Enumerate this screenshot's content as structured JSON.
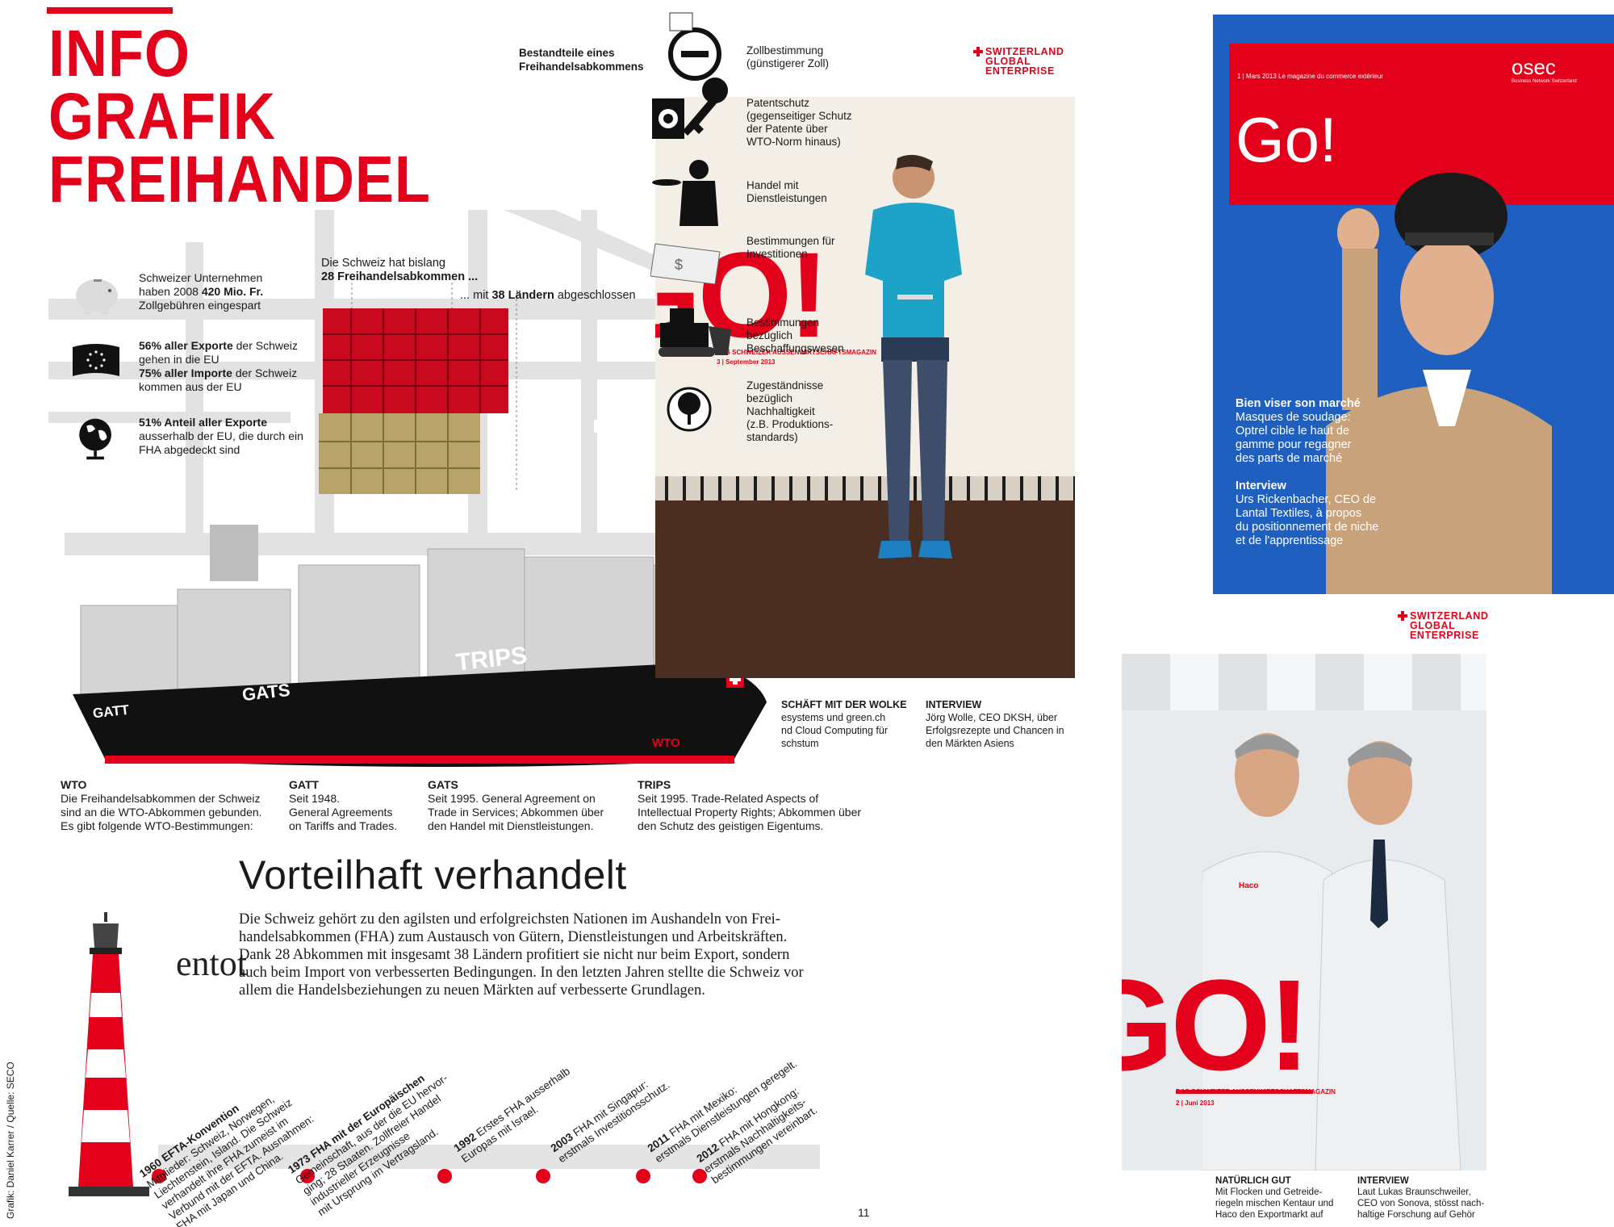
{
  "left_page": {
    "title_lines": [
      "INFO",
      "GRAFIK",
      "FREIHANDEL"
    ],
    "stats": [
      {
        "text": "Schweizer Unternehmen haben 2008 420 Mio. Fr. Zollgebühren eingespart",
        "icon": "piggy-bank-icon"
      },
      {
        "text": "56% aller Exporte der Schweiz gehen in die EU 75% aller Importe der Schweiz kommen aus der EU",
        "icon": "eu-flag-icon"
      },
      {
        "text": "51% Anteil aller Exporte ausserhalb der EU, die durch ein FHA abgedeckt sind",
        "icon": "globe-icon"
      }
    ],
    "stats_lines": [
      [
        "Schweizer Unternehmen",
        "haben 2008 ",
        "420 Mio. Fr.",
        "Zollgebühren eingespart"
      ],
      [
        "56% aller Exporte",
        " der Schweiz",
        "gehen in die EU",
        "75% aller Importe",
        " der Schweiz",
        "kommen aus der EU"
      ],
      [
        "51% Anteil aller Exporte",
        "ausserhalb der EU, die durch ein",
        "FHA abgedeckt sind"
      ]
    ],
    "fha_count_label_1": "Die Schweiz hat bislang",
    "fha_count_label_2": "28 Freihandelsabkommen ...",
    "countries_label_a": "... mit ",
    "countries_label_b": "38 Ländern",
    "countries_label_c": " abgeschlossen",
    "ship_labels": [
      "GATT",
      "GATS",
      "TRIPS",
      "WTO"
    ],
    "captions": [
      {
        "head": "WTO",
        "lines": [
          "Die Freihandelsabkommen der Schweiz",
          "sind an die WTO-Abkommen gebunden.",
          "Es gibt folgende WTO-Bestimmungen:"
        ]
      },
      {
        "head": "GATT",
        "lines": [
          "Seit 1948.",
          "General Agreements",
          "on Tariffs and Trades."
        ]
      },
      {
        "head": "GATS",
        "lines": [
          "Seit 1995. General Agreement on",
          "Trade in Services; Abkommen über",
          "den Handel mit Dienstleistungen."
        ]
      },
      {
        "head": "TRIPS",
        "lines": [
          "Seit 1995. Trade-Related Aspects of",
          "Intellectual Property Rights; Abkommen über",
          "den Schutz des geistigen Eigentums."
        ]
      }
    ],
    "subhead": "Vorteilhaft verhandelt",
    "body_lines": [
      "Die Schweiz gehört zu den agilsten und erfolgreichsten Nationen im Aushandeln von Frei-",
      "handelsabkommen (FHA) zum Austausch von Gütern, Dienstleistungen und Arbeitskräften.",
      "Dank 28 Abkommen mit insgesamt 38 Ländern profitiert sie nicht nur beim Export, sondern",
      "auch beim Import von verbesserten Bedingungen. In den letzten Jahren stellte die Schweiz vor",
      "allem die Handelsbeziehungen zu neuen Märkten auf verbesserte Grundlagen."
    ],
    "overprint": "entot",
    "timeline": [
      {
        "year": "1960",
        "head": "EFTA-Konvention",
        "lines": [
          "Mitglieder: Schweiz, Norwegen,",
          "Liechtenstein, Island. Die Schweiz",
          "verhandelt ihre FHA zumeist im",
          "Verbund mit der EFTA. Ausnahmen:",
          "FHA mit Japan und China."
        ]
      },
      {
        "year": "1973",
        "head": "FHA mit der Europäischen",
        "head2": "Gemeinschaft",
        "lines": [
          "Gemeinschaft, aus der die EU hervor-",
          "ging; 28 Staaten. Zollfreier Handel",
          "industrieller Erzeugnisse",
          "mit Ursprung im Vertragsland."
        ]
      },
      {
        "year": "1992",
        "head": "",
        "lines": [
          "Erstes FHA ausserhalb",
          "Europas mit Israel."
        ]
      },
      {
        "year": "2003",
        "head": "",
        "lines": [
          "FHA mit Singapur:",
          "erstmals Investitionsschutz."
        ]
      },
      {
        "year": "2011",
        "head": "",
        "lines": [
          "FHA mit Mexiko:",
          "erstmals Dienstleistungen geregelt."
        ]
      },
      {
        "year": "2012",
        "head": "",
        "lines": [
          "FHA mit Hongkong:",
          "erstmals Nachhaltigkeits-",
          "bestimmungen vereinbart."
        ]
      }
    ],
    "credit": "Grafik: Daniel Karrer / Quelle: SECO",
    "page_number": "11"
  },
  "components": {
    "heading_1": "Bestandteile eines",
    "heading_2": "Freihandelsabkommens",
    "items": [
      {
        "lines": [
          "Zollbestimmung",
          "(günstigerer Zoll)"
        ],
        "icon": "minus-icon"
      },
      {
        "lines": [
          "Patentschutz",
          "(gegenseitiger Schutz",
          "der Patente über",
          "WTO-Norm hinaus)"
        ],
        "icon": "key-icon"
      },
      {
        "lines": [
          "Handel mit",
          "Dienstleistungen"
        ],
        "icon": "waiter-icon"
      },
      {
        "lines": [
          "Bestimmungen für",
          "Investitionen"
        ],
        "icon": "money-icon"
      },
      {
        "lines": [
          "Bestimmungen",
          "bezüglich",
          "Beschaffungswesen"
        ],
        "icon": "bulldozer-icon"
      },
      {
        "lines": [
          "Zugeständnisse",
          "bezüglich",
          "Nachhaltigkeit",
          "(z.B. Produktions-",
          "standards)"
        ],
        "icon": "tree-icon"
      }
    ]
  },
  "mag_center": {
    "sge_lines": [
      "SWITZERLAND",
      "GLOBAL",
      "ENTERPRISE"
    ],
    "logo": "GO!",
    "tagline": "DAS SCHWEIZER AUSSENWIRTSCHAFTSMAGAZIN",
    "issue": "3 | September 2013",
    "teaser_left_head": "SCHÄFT MIT DER WOLKE",
    "teaser_left_lines": [
      "esystems und green.ch",
      "nd Cloud Computing für",
      "schstum"
    ],
    "teaser_right_head": "INTERVIEW",
    "teaser_right_lines": [
      "Jörg Wolle, CEO DKSH, über",
      "Erfolgsrezepte und Chancen in",
      "den Märkten Asiens"
    ]
  },
  "mag_osec": {
    "brand": "osec",
    "brand_sub": "Business Network Switzerland",
    "issue_line": "1 | Mars 2013   Le magazine du commerce extérieur",
    "logo": "Go!",
    "teaser1_head": "Bien viser son marché",
    "teaser1_lines": [
      "Masques de soudage:",
      "Optrel cible le haut de",
      "gamme pour regagner",
      "des parts de marché"
    ],
    "teaser2_head": "Interview",
    "teaser2_lines": [
      "Urs Rickenbacher, CEO de",
      "Lantal Textiles, à propos",
      "du positionnement de niche",
      "et de l'apprentissage"
    ]
  },
  "mag_june": {
    "sge_lines": [
      "SWITZERLAND",
      "GLOBAL",
      "ENTERPRISE"
    ],
    "logo": "GO!",
    "tagline": "DAS SCHWEIZER AUSSENWIRTSCHAFTSMAGAZIN",
    "issue": "2 | Juni 2013",
    "coat_brand": "Haco",
    "teaser_left_head": "NATÜRLICH GUT",
    "teaser_left_lines": [
      "Mit Flocken und Getreide-",
      "riegeln mischen Kentaur und",
      "Haco den Exportmarkt auf"
    ],
    "teaser_right_head": "INTERVIEW",
    "teaser_right_lines": [
      "Laut Lukas Braunschweiler,",
      "CEO von Sonova, stösst nach-",
      "haltige Forschung auf Gehör"
    ]
  },
  "colors": {
    "accent": "#e2001a",
    "osec_blue": "#1f5fbf",
    "container_tan": "#b8a46a"
  }
}
